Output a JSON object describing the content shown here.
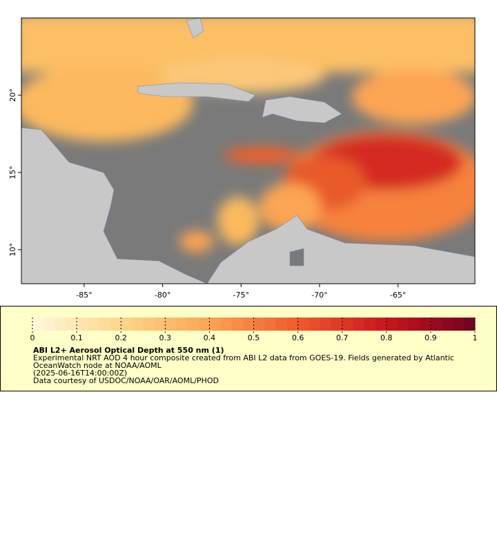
{
  "map": {
    "lon_range": [
      -89,
      -60.1
    ],
    "lat_range": [
      7.8,
      25
    ],
    "lon_ticks": [
      {
        "value": -85,
        "label": "-85°"
      },
      {
        "value": -80,
        "label": "-80°"
      },
      {
        "value": -75,
        "label": "-75°"
      },
      {
        "value": -70,
        "label": "-70°"
      },
      {
        "value": -65,
        "label": "-65°"
      }
    ],
    "lat_ticks": [
      {
        "value": 10,
        "label": "10°"
      },
      {
        "value": 15,
        "label": "15°"
      },
      {
        "value": 20,
        "label": "20°"
      }
    ]
  },
  "colorbar": {
    "range": [
      0,
      1
    ],
    "ticks": [
      0,
      0.1,
      0.2,
      0.3,
      0.4,
      0.5,
      0.6,
      0.7,
      0.8,
      0.9,
      1
    ],
    "colors": [
      "#fff8dc",
      "#fdd68c",
      "#fca552",
      "#f05a2c",
      "#c8161e",
      "#740022"
    ]
  },
  "legend": {
    "title": "ABI L2+ Aerosol Optical Depth at 550 nm (1)",
    "lines": [
      "Experimental NRT AOD 4 hour composite created from ABI L2 data from GOES-19. Fields generated by Atlantic",
      "OceanWatch node at NOAA/AOML",
      "(2025-06-16T14:00:00Z)",
      "Data courtesy of USDOC/NOAA/OAR/AOML/PHOD"
    ]
  }
}
